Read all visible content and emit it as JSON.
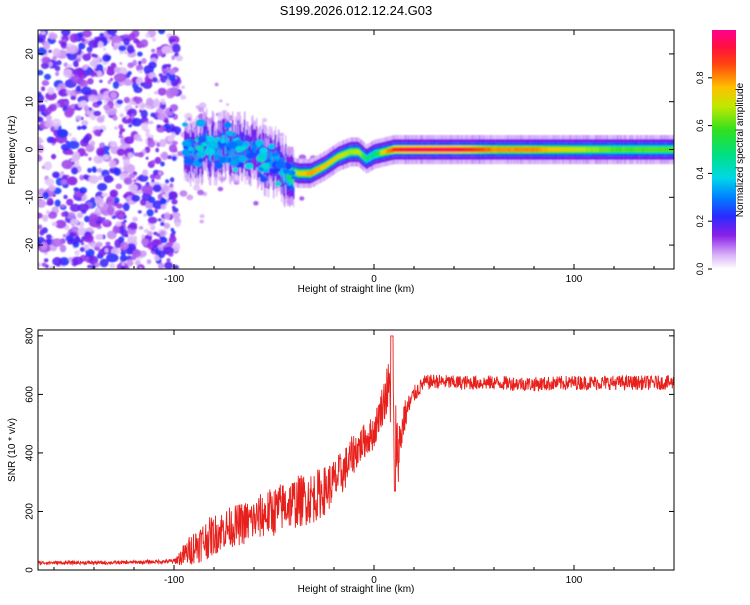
{
  "title": "S199.2026.012.12.24.G03",
  "colors": {
    "snr_line": "#e8201c",
    "background": "#ffffff",
    "axis": "#000000",
    "colormap": [
      "#ffffff",
      "#c090f0",
      "#7a10e8",
      "#2020ff",
      "#00a0ff",
      "#00e0d0",
      "#20e020",
      "#e0e000",
      "#ff8000",
      "#ff2020",
      "#ff0090"
    ]
  },
  "chart_data": [
    {
      "type": "heatmap",
      "title": "S199.2026.012.12.24.G03",
      "xlabel": "Height of straight line (km)",
      "ylabel": "Frequency (Hz)",
      "xlim": [
        -168,
        150
      ],
      "ylim": [
        -25,
        25
      ],
      "x_ticks": [
        -100,
        0,
        100
      ],
      "x_tick_labels": [
        "-100",
        "0",
        "100"
      ],
      "y_ticks": [
        20,
        10,
        0,
        -10,
        -20
      ],
      "y_tick_labels": [
        "20",
        "10",
        "0",
        "-10",
        "-20"
      ],
      "colorbar": {
        "label": "Normalized spectral amplitude",
        "range": [
          0,
          1
        ],
        "ticks": [
          0.0,
          0.2,
          0.4,
          0.6,
          0.8
        ],
        "tick_labels": [
          "0.0",
          "0.2",
          "0.4",
          "0.6",
          "0.8"
        ]
      },
      "noise_region_x": [
        -168,
        -98
      ],
      "ridge": {
        "x": [
          -95,
          -85,
          -75,
          -65,
          -55,
          -45,
          -38,
          -32,
          -25,
          -18,
          -12,
          -8,
          -4,
          0,
          5,
          10,
          20,
          40,
          60,
          80,
          100,
          120,
          150
        ],
        "freq": [
          0,
          0.5,
          0.5,
          0,
          -2,
          -4,
          -5,
          -5,
          -3.5,
          -1.5,
          -0.5,
          -0.5,
          -2,
          -1,
          -0.5,
          0,
          0,
          0,
          0,
          0,
          0,
          0,
          0
        ],
        "amplitude": [
          0.3,
          0.35,
          0.35,
          0.3,
          0.3,
          0.4,
          0.7,
          0.8,
          0.75,
          0.7,
          0.65,
          0.7,
          0.5,
          0.5,
          0.75,
          0.9,
          0.95,
          0.95,
          0.8,
          0.8,
          0.7,
          0.6,
          0.6
        ]
      }
    },
    {
      "type": "line",
      "xlabel": "Height of straight line (km)",
      "ylabel": "SNR (10 * v/v)",
      "xlim": [
        -168,
        150
      ],
      "ylim": [
        0,
        820
      ],
      "x_ticks": [
        -100,
        0,
        100
      ],
      "x_tick_labels": [
        "-100",
        "0",
        "100"
      ],
      "y_ticks": [
        0,
        200,
        400,
        600,
        800
      ],
      "y_tick_labels": [
        "0",
        "200",
        "400",
        "600",
        "800"
      ],
      "series": [
        {
          "name": "SNR",
          "x": [
            -168,
            -150,
            -130,
            -110,
            -100,
            -95,
            -90,
            -85,
            -80,
            -75,
            -70,
            -65,
            -60,
            -55,
            -50,
            -45,
            -40,
            -35,
            -30,
            -25,
            -20,
            -15,
            -10,
            -5,
            0,
            3,
            6,
            8,
            10,
            12,
            15,
            20,
            25,
            30,
            40,
            60,
            80,
            100,
            120,
            150
          ],
          "values": [
            25,
            25,
            25,
            28,
            30,
            50,
            80,
            100,
            120,
            140,
            150,
            160,
            170,
            190,
            200,
            220,
            230,
            240,
            250,
            270,
            300,
            340,
            400,
            440,
            470,
            540,
            600,
            620,
            500,
            400,
            520,
            600,
            640,
            645,
            640,
            640,
            635,
            640,
            640,
            640
          ],
          "noise": [
            6,
            6,
            6,
            6,
            8,
            40,
            60,
            70,
            70,
            70,
            70,
            75,
            75,
            80,
            85,
            85,
            90,
            90,
            90,
            85,
            80,
            75,
            70,
            60,
            60,
            60,
            90,
            120,
            140,
            110,
            60,
            30,
            25,
            25,
            25,
            25,
            25,
            25,
            25,
            25
          ]
        }
      ]
    }
  ]
}
